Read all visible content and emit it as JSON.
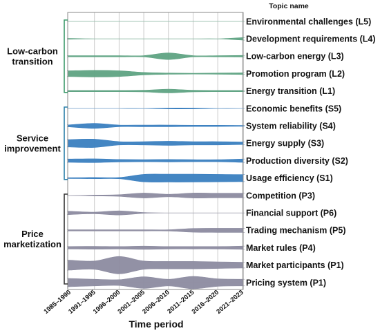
{
  "chart_data": {
    "type": "area",
    "subtype": "stream-ribbons",
    "x": [
      "1985–1990",
      "1991–1995",
      "1996–2000",
      "2001–2005",
      "2006–2010",
      "2011–2015",
      "2016–2020",
      "2021–2023"
    ],
    "xlabel": "Time period",
    "topic_header": "Topic name",
    "colors": {
      "L": "#5fa383",
      "S": "#3a7fc0",
      "P": "#8c8ba0"
    },
    "groups": [
      {
        "name_lines": [
          "Low-carbon",
          "transition"
        ],
        "code": "L",
        "color": "#5fa383"
      },
      {
        "name_lines": [
          "Service",
          "improvement"
        ],
        "code": "S",
        "color": "#3a7fc0"
      },
      {
        "name_lines": [
          "Price",
          "marketization"
        ],
        "code": "P",
        "color": "#8c8ba0"
      }
    ],
    "series": [
      {
        "name": "Environmental challenges (L5)",
        "group": "L",
        "values": [
          0,
          0,
          0,
          0,
          0,
          0,
          0,
          0
        ]
      },
      {
        "name": "Development requirements (L4)",
        "group": "L",
        "values": [
          0.2,
          0,
          0,
          0,
          0,
          0,
          0,
          0.6
        ]
      },
      {
        "name": "Low-carbon energy (L3)",
        "group": "L",
        "values": [
          0.3,
          0.3,
          0.3,
          0.3,
          1.6,
          0.3,
          0.3,
          0.4
        ]
      },
      {
        "name": "Promotion program (L2)",
        "group": "L",
        "values": [
          1.4,
          1.6,
          1.4,
          0.6,
          0.3,
          0.2,
          0.3,
          0.4
        ]
      },
      {
        "name": "Energy transition (L1)",
        "group": "L",
        "values": [
          0.3,
          0.3,
          0.3,
          0.4,
          0.9,
          0.4,
          0.3,
          0.3
        ]
      },
      {
        "name": "Economic benefits (S5)",
        "group": "S",
        "values": [
          0,
          0,
          0,
          0,
          0.2,
          0.2,
          0,
          0
        ]
      },
      {
        "name": "System reliability (S4)",
        "group": "S",
        "values": [
          0.5,
          1.2,
          0.4,
          0.4,
          0.4,
          0.3,
          0.3,
          0.2
        ]
      },
      {
        "name": "Energy supply (S3)",
        "group": "S",
        "values": [
          1.8,
          2.0,
          0.8,
          0.8,
          1.0,
          0.8,
          0.8,
          0.6
        ]
      },
      {
        "name": "Production diversity (S2)",
        "group": "S",
        "values": [
          0.8,
          0.9,
          0.6,
          0.5,
          0.6,
          0.5,
          0.5,
          0.8
        ]
      },
      {
        "name": "Usage efficiency (S1)",
        "group": "S",
        "values": [
          0.2,
          0.3,
          0.3,
          1.8,
          1.9,
          1.9,
          1.8,
          1.7
        ]
      },
      {
        "name": "Competition (P3)",
        "group": "P",
        "values": [
          0,
          0.2,
          0.4,
          1.2,
          0.6,
          1.2,
          1.1,
          1.1
        ]
      },
      {
        "name": "Financial support (P6)",
        "group": "P",
        "values": [
          0.8,
          0.4,
          1.0,
          0.2,
          0,
          0,
          0,
          0
        ]
      },
      {
        "name": "Trading mechanism (P5)",
        "group": "P",
        "values": [
          0.3,
          0.3,
          0.3,
          0.3,
          0.3,
          0.9,
          1.0,
          1.0
        ]
      },
      {
        "name": "Market rules (P4)",
        "group": "P",
        "values": [
          0.6,
          0.7,
          0.6,
          0.8,
          0.6,
          0.6,
          0.6,
          0.8
        ]
      },
      {
        "name": "Market participants (P1)",
        "group": "P",
        "values": [
          2.4,
          2.0,
          4.2,
          2.0,
          1.8,
          1.8,
          1.6,
          1.4
        ]
      },
      {
        "name": "Pricing system (P1)",
        "group": "P",
        "values": [
          2.0,
          1.6,
          1.4,
          2.8,
          1.6,
          3.0,
          1.8,
          1.6
        ]
      }
    ]
  }
}
